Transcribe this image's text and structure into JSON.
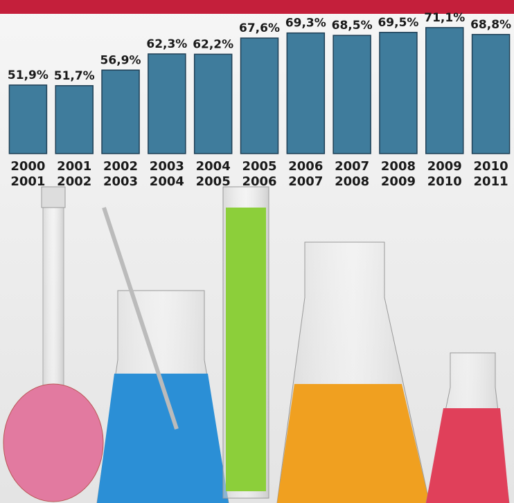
{
  "chart_data": {
    "type": "bar",
    "categories": [
      [
        "2000",
        "2001"
      ],
      [
        "2001",
        "2002"
      ],
      [
        "2002",
        "2003"
      ],
      [
        "2003",
        "2004"
      ],
      [
        "2004",
        "2005"
      ],
      [
        "2005",
        "2006"
      ],
      [
        "2006",
        "2007"
      ],
      [
        "2007",
        "2008"
      ],
      [
        "2008",
        "2009"
      ],
      [
        "2009",
        "2010"
      ],
      [
        "2010",
        "2011"
      ]
    ],
    "values": [
      51.9,
      51.7,
      56.9,
      62.3,
      62.2,
      67.6,
      69.3,
      68.5,
      69.5,
      71.1,
      68.8
    ],
    "value_labels": [
      "51,9%",
      "51,7%",
      "56,9%",
      "62,3%",
      "62,2%",
      "67,6%",
      "69,3%",
      "68,5%",
      "69,5%",
      "71,1%",
      "68,8%"
    ],
    "color": "#3f7c9c",
    "ylim": [
      29,
      75
    ]
  }
}
